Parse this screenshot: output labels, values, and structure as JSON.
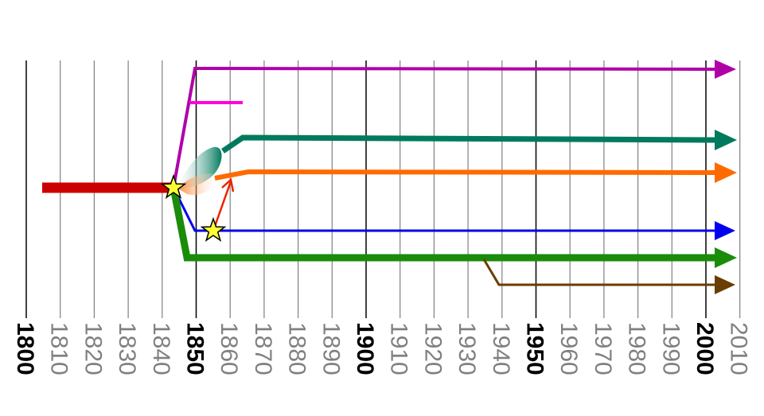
{
  "colors": {
    "background": "#ffffff",
    "grid_major": "#000000",
    "grid_minor": "#808080",
    "label_major": "#000000",
    "label_minor": "#808080",
    "red": "#cc0000",
    "magenta_purple": "#b000a8",
    "pink": "#ff00dd",
    "teal": "#007a5e",
    "orange": "#ff6a00",
    "blue": "#0000ee",
    "green": "#1a8c0a",
    "brown": "#6a3d00",
    "star_fill": "#ffff33",
    "star_stroke": "#000000",
    "arrow_red": "#ee2200"
  },
  "axis": {
    "labels": [
      {
        "text": "1800",
        "year": 1800,
        "major": true
      },
      {
        "text": "1810",
        "year": 1810,
        "major": false
      },
      {
        "text": "1820",
        "year": 1820,
        "major": false
      },
      {
        "text": "1830",
        "year": 1830,
        "major": false
      },
      {
        "text": "1840",
        "year": 1840,
        "major": false
      },
      {
        "text": "1850",
        "year": 1850,
        "major": true
      },
      {
        "text": "1860",
        "year": 1860,
        "major": false
      },
      {
        "text": "1870",
        "year": 1870,
        "major": false
      },
      {
        "text": "1880",
        "year": 1880,
        "major": false
      },
      {
        "text": "1890",
        "year": 1890,
        "major": false
      },
      {
        "text": "1900",
        "year": 1900,
        "major": true
      },
      {
        "text": "1910",
        "year": 1910,
        "major": false
      },
      {
        "text": "1920",
        "year": 1920,
        "major": false
      },
      {
        "text": "1930",
        "year": 1930,
        "major": false
      },
      {
        "text": "1940",
        "year": 1940,
        "major": false
      },
      {
        "text": "1950",
        "year": 1950,
        "major": true
      },
      {
        "text": "1960",
        "year": 1960,
        "major": false
      },
      {
        "text": "1970",
        "year": 1970,
        "major": false
      },
      {
        "text": "1980",
        "year": 1980,
        "major": false
      },
      {
        "text": "1990",
        "year": 1990,
        "major": false
      },
      {
        "text": "2000",
        "year": 2000,
        "major": true
      },
      {
        "text": "2010",
        "year": 2010,
        "major": false
      }
    ]
  },
  "branches": [
    {
      "id": "red-trunk",
      "color": "red",
      "start": 1805,
      "end": 1844
    },
    {
      "id": "purple-line",
      "color": "magenta_purple",
      "start": 1844,
      "end": 2005,
      "arrow": true
    },
    {
      "id": "pink-line",
      "color": "pink",
      "start": 1849,
      "end": 1863,
      "arrow": false
    },
    {
      "id": "teal-line",
      "color": "teal",
      "start": 1858,
      "end": 2005,
      "arrow": true
    },
    {
      "id": "orange-line",
      "color": "orange",
      "start": 1858,
      "end": 2005,
      "arrow": true
    },
    {
      "id": "blue-line",
      "color": "blue",
      "start": 1844,
      "end": 2005,
      "arrow": true
    },
    {
      "id": "green-line",
      "color": "green",
      "start": 1844,
      "end": 2005,
      "arrow": true
    },
    {
      "id": "brown-line",
      "color": "brown",
      "start": 1936,
      "end": 2005,
      "arrow": true
    }
  ],
  "events": [
    {
      "id": "star-origin",
      "year": 1844,
      "icon": "star-icon"
    },
    {
      "id": "star-blue",
      "year": 1855,
      "icon": "star-icon"
    }
  ]
}
